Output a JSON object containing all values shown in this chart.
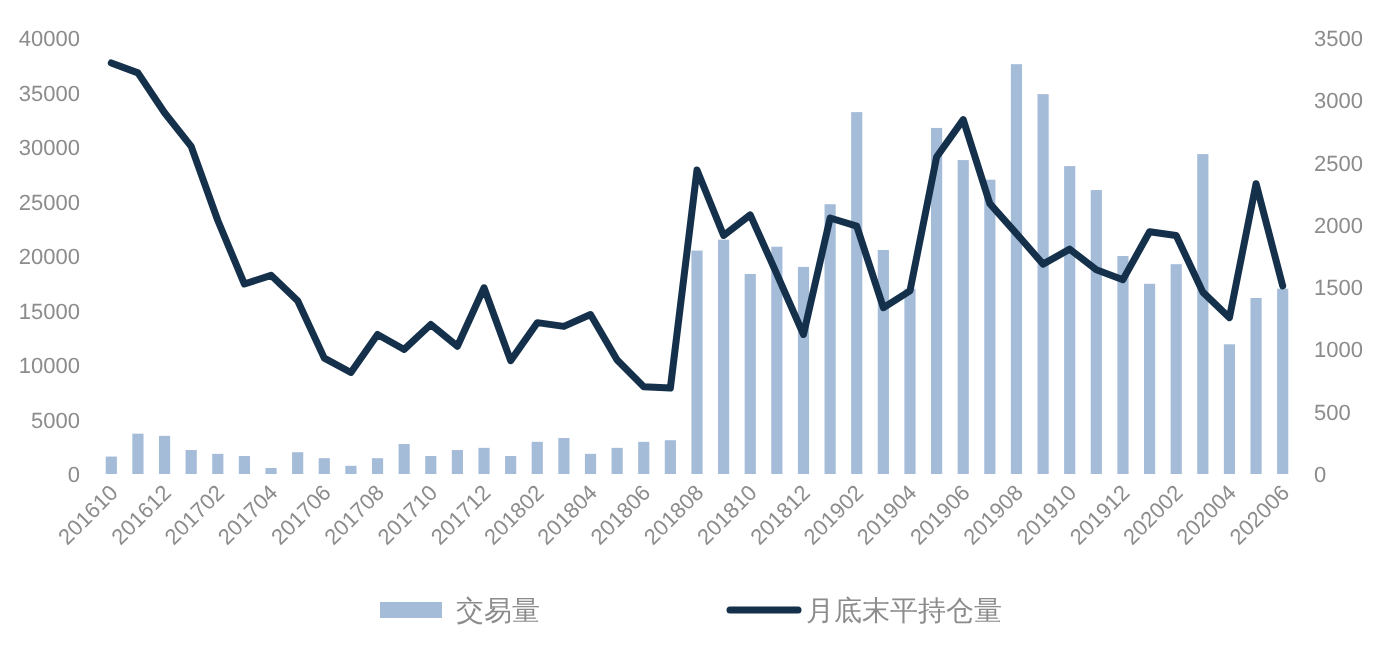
{
  "chart_data": {
    "type": "bar",
    "categories": [
      "201610",
      null,
      "201612",
      null,
      "201702",
      null,
      "201704",
      null,
      "201706",
      null,
      "201708",
      null,
      "201710",
      null,
      "201712",
      null,
      "201802",
      null,
      "201804",
      null,
      "201806",
      null,
      "201808",
      null,
      "201810",
      null,
      "201812",
      null,
      "201902",
      null,
      "201904",
      null,
      "201906",
      null,
      "201908",
      null,
      "201910",
      null,
      "201912",
      null,
      "202002",
      null,
      "202004",
      null,
      "202006"
    ],
    "series": [
      {
        "name": "交易量",
        "color": "#a5bcd9",
        "values": [
          1600,
          3700,
          3500,
          2200,
          1850,
          1650,
          550,
          2000,
          1450,
          750,
          1450,
          2750,
          1650,
          2200,
          2400,
          1650,
          2950,
          3300,
          1850,
          2400,
          2950,
          3100,
          20500,
          21500,
          18350,
          20850,
          19000,
          24750,
          33200,
          20550,
          17000,
          31750,
          28800,
          27000,
          37600,
          34850,
          28250,
          26050,
          20000,
          17450,
          19250,
          29350,
          11900,
          16150,
          17000
        ]
      },
      {
        "name": "月底末平持仓量",
        "type": "line",
        "axis": "y2",
        "color": "#14304a",
        "values": [
          3300,
          3220,
          2900,
          2630,
          2035,
          1525,
          1595,
          1390,
          930,
          815,
          1120,
          1000,
          1200,
          1025,
          1495,
          910,
          1215,
          1185,
          1280,
          915,
          700,
          690,
          2440,
          1915,
          2080,
          1605,
          1120,
          2055,
          1990,
          1335,
          1470,
          2545,
          2845,
          2170,
          1930,
          1685,
          1805,
          1640,
          1560,
          1945,
          1915,
          1460,
          1255,
          2330,
          1510
        ]
      }
    ],
    "ylim": [
      0,
      40000
    ],
    "yticks": [
      0,
      5000,
      10000,
      15000,
      20000,
      25000,
      30000,
      35000,
      40000
    ],
    "y2lim": [
      0,
      3500
    ],
    "y2ticks": [
      0,
      500,
      1000,
      1500,
      2000,
      2500,
      3000,
      3500
    ],
    "legend": "bottom"
  }
}
